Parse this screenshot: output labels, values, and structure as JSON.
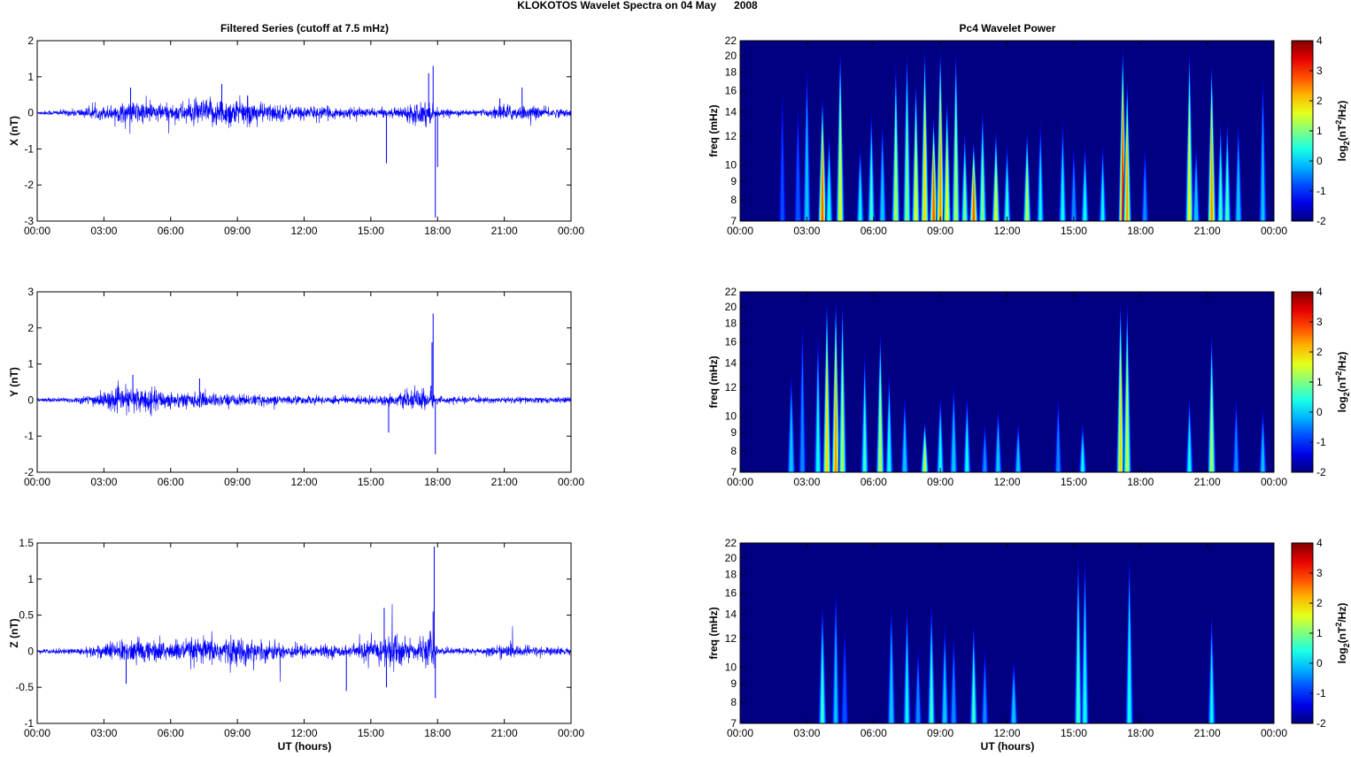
{
  "chart_data": [
    {
      "type": "line",
      "figure_title": "KLOKOTOS Wavelet Spectra on 04 May      2008",
      "title": "Filtered Series (cutoff at 7.5 mHz)",
      "xlabel": "UT (hours)",
      "x_range_hours": [
        0,
        24
      ],
      "x_ticks": [
        "00:00",
        "03:00",
        "06:00",
        "09:00",
        "12:00",
        "15:00",
        "18:00",
        "21:00",
        "00:00"
      ],
      "color": "#0000ff",
      "panels": [
        {
          "ylabel": "X (nT)",
          "ylim": [
            -3,
            2
          ],
          "y_ticks": [
            "-3",
            "-2",
            "-1",
            "0",
            "1",
            "2"
          ],
          "envelope": [
            [
              0,
              0.05
            ],
            [
              1.5,
              0.1
            ],
            [
              3,
              0.2
            ],
            [
              4.5,
              0.35
            ],
            [
              6,
              0.25
            ],
            [
              7.5,
              0.4
            ],
            [
              8.5,
              0.45
            ],
            [
              10,
              0.3
            ],
            [
              12,
              0.2
            ],
            [
              14,
              0.15
            ],
            [
              16,
              0.12
            ],
            [
              17.5,
              0.4
            ],
            [
              18,
              0.1
            ],
            [
              20,
              0.08
            ],
            [
              21,
              0.25
            ],
            [
              22,
              0.2
            ],
            [
              24,
              0.1
            ]
          ],
          "spikes": [
            [
              4.2,
              0.7
            ],
            [
              8.3,
              0.8
            ],
            [
              15.7,
              -1.4
            ],
            [
              17.6,
              1.1
            ],
            [
              17.8,
              1.3
            ],
            [
              17.9,
              -2.9
            ],
            [
              18.0,
              -1.5
            ],
            [
              20.8,
              0.4
            ],
            [
              21.8,
              0.7
            ]
          ]
        },
        {
          "ylabel": "Y (nT)",
          "ylim": [
            -2,
            3
          ],
          "y_ticks": [
            "-2",
            "-1",
            "0",
            "1",
            "2",
            "3"
          ],
          "envelope": [
            [
              0,
              0.05
            ],
            [
              2,
              0.1
            ],
            [
              3,
              0.25
            ],
            [
              4.5,
              0.4
            ],
            [
              6,
              0.25
            ],
            [
              8,
              0.2
            ],
            [
              10,
              0.15
            ],
            [
              12,
              0.12
            ],
            [
              14,
              0.12
            ],
            [
              16,
              0.15
            ],
            [
              17.5,
              0.35
            ],
            [
              18,
              0.1
            ],
            [
              20,
              0.08
            ],
            [
              22,
              0.1
            ],
            [
              24,
              0.08
            ]
          ],
          "spikes": [
            [
              4.3,
              0.7
            ],
            [
              7.3,
              0.6
            ],
            [
              15.8,
              -0.9
            ],
            [
              17.7,
              0.4
            ],
            [
              17.8,
              2.4
            ],
            [
              17.9,
              -1.5
            ],
            [
              17.75,
              1.6
            ]
          ]
        },
        {
          "ylabel": "Z (nT)",
          "ylim": [
            -1,
            1.5
          ],
          "y_ticks": [
            "-1",
            "-0.5",
            "0",
            "0.5",
            "1",
            "1.5"
          ],
          "envelope": [
            [
              0,
              0.03
            ],
            [
              2,
              0.05
            ],
            [
              3,
              0.12
            ],
            [
              4.5,
              0.18
            ],
            [
              6,
              0.15
            ],
            [
              8,
              0.2
            ],
            [
              9,
              0.2
            ],
            [
              10,
              0.15
            ],
            [
              12,
              0.1
            ],
            [
              14,
              0.08
            ],
            [
              15.5,
              0.2
            ],
            [
              16,
              0.3
            ],
            [
              17,
              0.1
            ],
            [
              17.8,
              0.3
            ],
            [
              18,
              0.05
            ],
            [
              20,
              0.05
            ],
            [
              21,
              0.1
            ],
            [
              22,
              0.08
            ],
            [
              24,
              0.05
            ]
          ],
          "spikes": [
            [
              4.0,
              -0.45
            ],
            [
              15.6,
              0.6
            ],
            [
              15.7,
              -0.5
            ],
            [
              13.9,
              -0.55
            ],
            [
              17.8,
              0.55
            ],
            [
              17.85,
              1.45
            ],
            [
              17.9,
              -0.65
            ]
          ]
        }
      ]
    },
    {
      "type": "heatmap",
      "title": "Pc4 Wavelet Power",
      "xlabel": "UT (hours)",
      "ylabel": "freq (mHz)",
      "y_scale": "log",
      "ylim": [
        7,
        22
      ],
      "y_ticks": [
        "7",
        "8",
        "9",
        "10",
        "12",
        "14",
        "16",
        "18",
        "20",
        "22"
      ],
      "x_ticks": [
        "00:00",
        "03:00",
        "06:00",
        "09:00",
        "12:00",
        "15:00",
        "18:00",
        "21:00",
        "00:00"
      ],
      "colorbar": {
        "range": [
          -2,
          4
        ],
        "ticks": [
          "-2",
          "-1",
          "0",
          "1",
          "2",
          "3",
          "4"
        ],
        "label_parts": [
          "log",
          "2",
          "(nT",
          "2",
          "/Hz)"
        ],
        "colormap": "jet"
      },
      "panels": [
        {
          "component": "X",
          "events": [
            [
              1.9,
              -0.8,
              18
            ],
            [
              2.6,
              -0.5,
              16
            ],
            [
              3.0,
              0.2,
              20
            ],
            [
              3.7,
              2.8,
              16
            ],
            [
              4.0,
              0.5,
              13
            ],
            [
              4.5,
              1.8,
              22
            ],
            [
              5.4,
              0.3,
              12
            ],
            [
              5.9,
              0.6,
              15
            ],
            [
              6.4,
              0.2,
              14
            ],
            [
              7.0,
              1.6,
              20
            ],
            [
              7.5,
              1.2,
              22
            ],
            [
              7.9,
              1.8,
              18
            ],
            [
              8.3,
              2.2,
              22
            ],
            [
              8.7,
              3.0,
              14
            ],
            [
              9.0,
              2.6,
              22
            ],
            [
              9.3,
              1.8,
              16
            ],
            [
              9.7,
              1.5,
              22
            ],
            [
              10.1,
              1.0,
              13
            ],
            [
              10.5,
              3.0,
              12
            ],
            [
              10.9,
              1.2,
              15
            ],
            [
              11.5,
              1.8,
              13
            ],
            [
              12.0,
              0.6,
              12
            ],
            [
              12.9,
              1.6,
              13
            ],
            [
              13.5,
              0.3,
              14
            ],
            [
              14.5,
              0.4,
              14
            ],
            [
              15.0,
              -0.2,
              12
            ],
            [
              15.5,
              0.5,
              12
            ],
            [
              16.3,
              0.3,
              12
            ],
            [
              17.2,
              3.2,
              22
            ],
            [
              17.4,
              2.4,
              18
            ],
            [
              18.2,
              -0.3,
              12
            ],
            [
              20.2,
              1.8,
              22
            ],
            [
              20.5,
              0.2,
              12
            ],
            [
              21.2,
              2.6,
              20
            ],
            [
              21.6,
              0.6,
              14
            ],
            [
              21.9,
              0.8,
              14
            ],
            [
              22.4,
              0.2,
              14
            ],
            [
              23.5,
              0.0,
              19
            ]
          ]
        },
        {
          "component": "Y",
          "events": [
            [
              2.3,
              0.2,
              14
            ],
            [
              2.8,
              -0.3,
              20
            ],
            [
              3.5,
              0.4,
              18
            ],
            [
              3.9,
              2.2,
              22
            ],
            [
              4.3,
              2.6,
              22
            ],
            [
              4.6,
              1.4,
              22
            ],
            [
              5.6,
              0.6,
              16
            ],
            [
              6.3,
              1.6,
              18
            ],
            [
              6.7,
              0.5,
              14
            ],
            [
              7.4,
              0.2,
              12
            ],
            [
              8.3,
              1.6,
              10
            ],
            [
              9.0,
              0.5,
              12
            ],
            [
              9.6,
              0.2,
              13
            ],
            [
              10.2,
              0.4,
              12
            ],
            [
              11.0,
              -0.3,
              10
            ],
            [
              11.6,
              0.2,
              11
            ],
            [
              12.5,
              0.1,
              10
            ],
            [
              14.3,
              -0.3,
              12
            ],
            [
              15.4,
              0.3,
              10
            ],
            [
              17.1,
              2.0,
              22
            ],
            [
              17.4,
              1.6,
              22
            ],
            [
              20.2,
              0.3,
              12
            ],
            [
              21.2,
              1.4,
              18
            ],
            [
              22.3,
              -0.3,
              12
            ],
            [
              23.5,
              0.0,
              11
            ]
          ]
        },
        {
          "component": "Z",
          "events": [
            [
              3.7,
              0.6,
              16
            ],
            [
              4.3,
              0.0,
              18
            ],
            [
              4.7,
              -0.5,
              14
            ],
            [
              6.8,
              0.2,
              16
            ],
            [
              7.5,
              0.3,
              16
            ],
            [
              8.0,
              -0.2,
              12
            ],
            [
              8.6,
              0.6,
              16
            ],
            [
              9.2,
              0.2,
              14
            ],
            [
              9.6,
              -0.2,
              13
            ],
            [
              10.5,
              0.6,
              14
            ],
            [
              11.0,
              -0.3,
              12
            ],
            [
              12.3,
              0.2,
              11
            ],
            [
              15.2,
              0.7,
              22
            ],
            [
              15.5,
              0.4,
              22
            ],
            [
              17.5,
              0.5,
              22
            ],
            [
              21.2,
              0.3,
              15
            ]
          ]
        }
      ]
    }
  ]
}
